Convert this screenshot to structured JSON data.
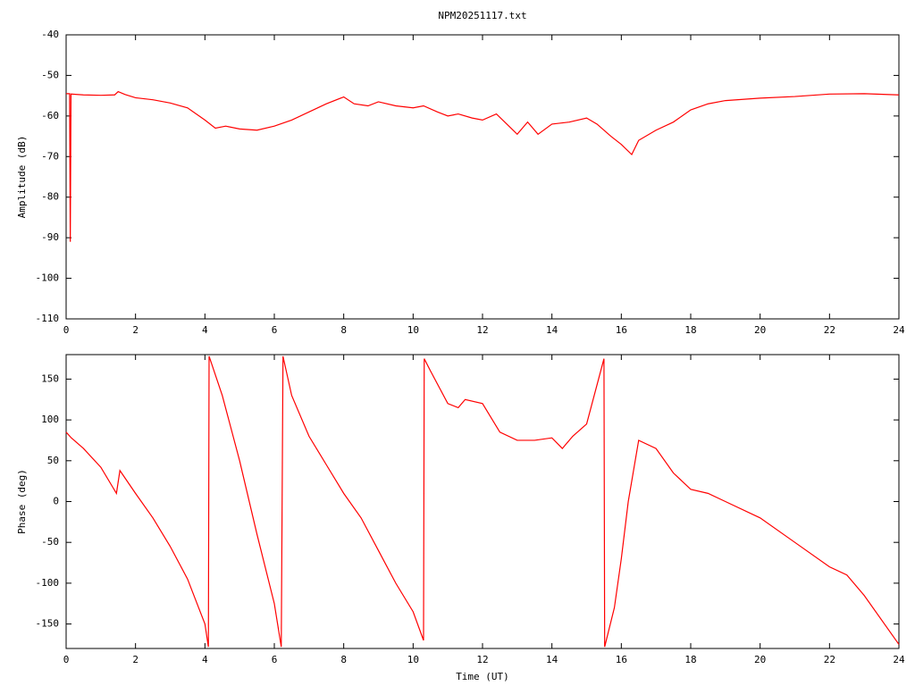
{
  "title": "NPM20251117.txt",
  "chart_data": [
    {
      "type": "line",
      "ylabel": "Amplitude (dB)",
      "xlim": [
        0,
        24
      ],
      "xticks": [
        0,
        2,
        4,
        6,
        8,
        10,
        12,
        14,
        16,
        18,
        20,
        22,
        24
      ],
      "ylim": [
        -110,
        -40
      ],
      "yticks": [
        -40,
        -50,
        -60,
        -70,
        -80,
        -90,
        -100,
        -110
      ],
      "grid": false,
      "series": [
        {
          "color": "#ff0000",
          "x": [
            0,
            0.1,
            0.12,
            0.14,
            0.5,
            1.0,
            1.4,
            1.5,
            1.7,
            2,
            2.5,
            3,
            3.5,
            4,
            4.3,
            4.6,
            5,
            5.5,
            6,
            6.5,
            7,
            7.5,
            8,
            8.3,
            8.7,
            9,
            9.5,
            10,
            10.3,
            10.7,
            11,
            11.3,
            11.7,
            12,
            12.4,
            12.7,
            13,
            13.3,
            13.6,
            14,
            14.5,
            15,
            15.3,
            15.7,
            16,
            16.3,
            16.5,
            17,
            17.5,
            18,
            18.5,
            19,
            20,
            21,
            22,
            23,
            24
          ],
          "values": [
            -54.5,
            -54.5,
            -91,
            -54.6,
            -54.8,
            -54.9,
            -54.8,
            -54,
            -54.7,
            -55.5,
            -56,
            -56.8,
            -58,
            -61,
            -63,
            -62.5,
            -63.2,
            -63.5,
            -62.5,
            -61,
            -59,
            -57,
            -55.3,
            -57,
            -57.5,
            -56.5,
            -57.5,
            -58,
            -57.5,
            -59,
            -60,
            -59.5,
            -60.5,
            -61,
            -59.5,
            -62,
            -64.5,
            -61.5,
            -64.5,
            -62,
            -61.5,
            -60.5,
            -62,
            -65,
            -67,
            -69.5,
            -66,
            -63.5,
            -61.5,
            -58.5,
            -57,
            -56.2,
            -55.6,
            -55.2,
            -54.6,
            -54.5,
            -54.8
          ]
        }
      ]
    },
    {
      "type": "line",
      "ylabel": "Phase (deg)",
      "xlabel": "Time (UT)",
      "xlim": [
        0,
        24
      ],
      "xticks": [
        0,
        2,
        4,
        6,
        8,
        10,
        12,
        14,
        16,
        18,
        20,
        22,
        24
      ],
      "ylim": [
        -180,
        180
      ],
      "yticks": [
        150,
        100,
        50,
        0,
        -50,
        -100,
        -150
      ],
      "grid": false,
      "series": [
        {
          "color": "#ff0000",
          "x": [
            0,
            0.15,
            0.5,
            1,
            1.45,
            1.55,
            2,
            2.5,
            3,
            3.5,
            4,
            4.1,
            4.12,
            4.5,
            5,
            5.5,
            6,
            6.2,
            6.25,
            6.5,
            7,
            7.5,
            8,
            8.5,
            9,
            9.5,
            10,
            10.3,
            10.32,
            10.5,
            11,
            11.3,
            11.5,
            12,
            12.5,
            13,
            13.5,
            14,
            14.3,
            14.6,
            15,
            15.5,
            15.52,
            15.8,
            16,
            16.2,
            16.5,
            17,
            17.5,
            18,
            18.5,
            19,
            20,
            21,
            22,
            22.5,
            23,
            24
          ],
          "values": [
            85,
            78,
            65,
            42,
            10,
            38,
            10,
            -20,
            -55,
            -95,
            -150,
            -178,
            178,
            130,
            50,
            -40,
            -125,
            -178,
            178,
            130,
            80,
            45,
            10,
            -20,
            -60,
            -100,
            -135,
            -170,
            175,
            160,
            120,
            115,
            125,
            120,
            85,
            75,
            75,
            78,
            65,
            80,
            95,
            175,
            -178,
            -130,
            -70,
            0,
            75,
            65,
            35,
            15,
            10,
            0,
            -20,
            -50,
            -80,
            -90,
            -115,
            -175
          ]
        }
      ]
    }
  ]
}
